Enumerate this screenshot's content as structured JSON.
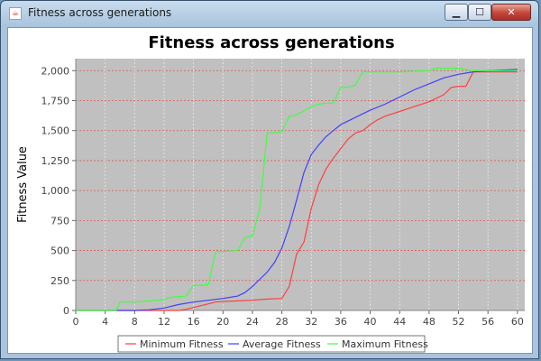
{
  "window": {
    "title": "Fitness across generations",
    "controls": {
      "minimize": "▁",
      "maximize": "☐",
      "close": "✕"
    }
  },
  "colors": {
    "plot_background": "#c0c0c0",
    "gridline": "#e05555",
    "minimum": "#ff4040",
    "average": "#4040ff",
    "maximum": "#40ff40"
  },
  "chart_data": {
    "type": "line",
    "title": "Fitness across generations",
    "xlabel": "",
    "ylabel": "Fitness Value",
    "xlim": [
      0,
      61
    ],
    "ylim": [
      0,
      2100
    ],
    "x_ticks": [
      0,
      4,
      8,
      12,
      16,
      20,
      24,
      28,
      32,
      36,
      40,
      44,
      48,
      52,
      56,
      60
    ],
    "y_ticks": [
      0,
      250,
      500,
      750,
      1000,
      1250,
      1500,
      1750,
      2000
    ],
    "y_tick_labels": [
      "0",
      "250",
      "500",
      "750",
      "1,000",
      "1,250",
      "1,500",
      "1,750",
      "2,000"
    ],
    "grid": true,
    "legend_position": "bottom",
    "series": [
      {
        "name": "Minimum Fitness",
        "color": "#ff4040",
        "points": [
          [
            0,
            0
          ],
          [
            14,
            0
          ],
          [
            15,
            10
          ],
          [
            16,
            25
          ],
          [
            17,
            40
          ],
          [
            18,
            55
          ],
          [
            19,
            70
          ],
          [
            20,
            75
          ],
          [
            22,
            80
          ],
          [
            24,
            85
          ],
          [
            26,
            95
          ],
          [
            28,
            100
          ],
          [
            29,
            200
          ],
          [
            30,
            470
          ],
          [
            31,
            570
          ],
          [
            32,
            850
          ],
          [
            33,
            1050
          ],
          [
            34,
            1180
          ],
          [
            35,
            1270
          ],
          [
            36,
            1350
          ],
          [
            37,
            1430
          ],
          [
            38,
            1480
          ],
          [
            39,
            1500
          ],
          [
            40,
            1550
          ],
          [
            41,
            1590
          ],
          [
            42,
            1620
          ],
          [
            44,
            1660
          ],
          [
            46,
            1700
          ],
          [
            48,
            1740
          ],
          [
            50,
            1800
          ],
          [
            51,
            1860
          ],
          [
            52,
            1870
          ],
          [
            53,
            1870
          ],
          [
            54,
            1990
          ],
          [
            56,
            1990
          ],
          [
            60,
            1990
          ]
        ]
      },
      {
        "name": "Average Fitness",
        "color": "#4040ff",
        "points": [
          [
            0,
            0
          ],
          [
            8,
            0
          ],
          [
            10,
            5
          ],
          [
            12,
            20
          ],
          [
            14,
            50
          ],
          [
            16,
            70
          ],
          [
            18,
            85
          ],
          [
            20,
            100
          ],
          [
            22,
            120
          ],
          [
            23,
            150
          ],
          [
            24,
            200
          ],
          [
            25,
            260
          ],
          [
            26,
            320
          ],
          [
            27,
            400
          ],
          [
            28,
            520
          ],
          [
            29,
            700
          ],
          [
            30,
            920
          ],
          [
            31,
            1150
          ],
          [
            32,
            1300
          ],
          [
            33,
            1380
          ],
          [
            34,
            1450
          ],
          [
            35,
            1500
          ],
          [
            36,
            1550
          ],
          [
            37,
            1580
          ],
          [
            38,
            1610
          ],
          [
            39,
            1640
          ],
          [
            40,
            1670
          ],
          [
            42,
            1720
          ],
          [
            44,
            1780
          ],
          [
            46,
            1840
          ],
          [
            48,
            1890
          ],
          [
            50,
            1940
          ],
          [
            52,
            1970
          ],
          [
            54,
            1990
          ],
          [
            56,
            2000
          ],
          [
            60,
            2010
          ]
        ]
      },
      {
        "name": "Maximum Fitness",
        "color": "#40ff40",
        "points": [
          [
            0,
            0
          ],
          [
            5.5,
            0
          ],
          [
            6,
            70
          ],
          [
            8,
            70
          ],
          [
            10,
            80
          ],
          [
            11,
            85
          ],
          [
            12,
            90
          ],
          [
            13,
            110
          ],
          [
            15,
            120
          ],
          [
            16,
            210
          ],
          [
            17,
            210
          ],
          [
            18,
            215
          ],
          [
            19,
            490
          ],
          [
            21,
            495
          ],
          [
            22,
            500
          ],
          [
            23,
            610
          ],
          [
            24,
            620
          ],
          [
            25,
            850
          ],
          [
            26,
            1480
          ],
          [
            27,
            1480
          ],
          [
            28,
            1490
          ],
          [
            29,
            1620
          ],
          [
            30,
            1630
          ],
          [
            32,
            1700
          ],
          [
            33,
            1720
          ],
          [
            34,
            1730
          ],
          [
            35,
            1730
          ],
          [
            36,
            1860
          ],
          [
            37,
            1860
          ],
          [
            38,
            1880
          ],
          [
            39,
            1990
          ],
          [
            42,
            1990
          ],
          [
            44,
            1990
          ],
          [
            48,
            2000
          ],
          [
            49,
            2020
          ],
          [
            52,
            2020
          ],
          [
            54,
            2000
          ],
          [
            56,
            2000
          ],
          [
            60,
            2000
          ]
        ]
      }
    ]
  }
}
